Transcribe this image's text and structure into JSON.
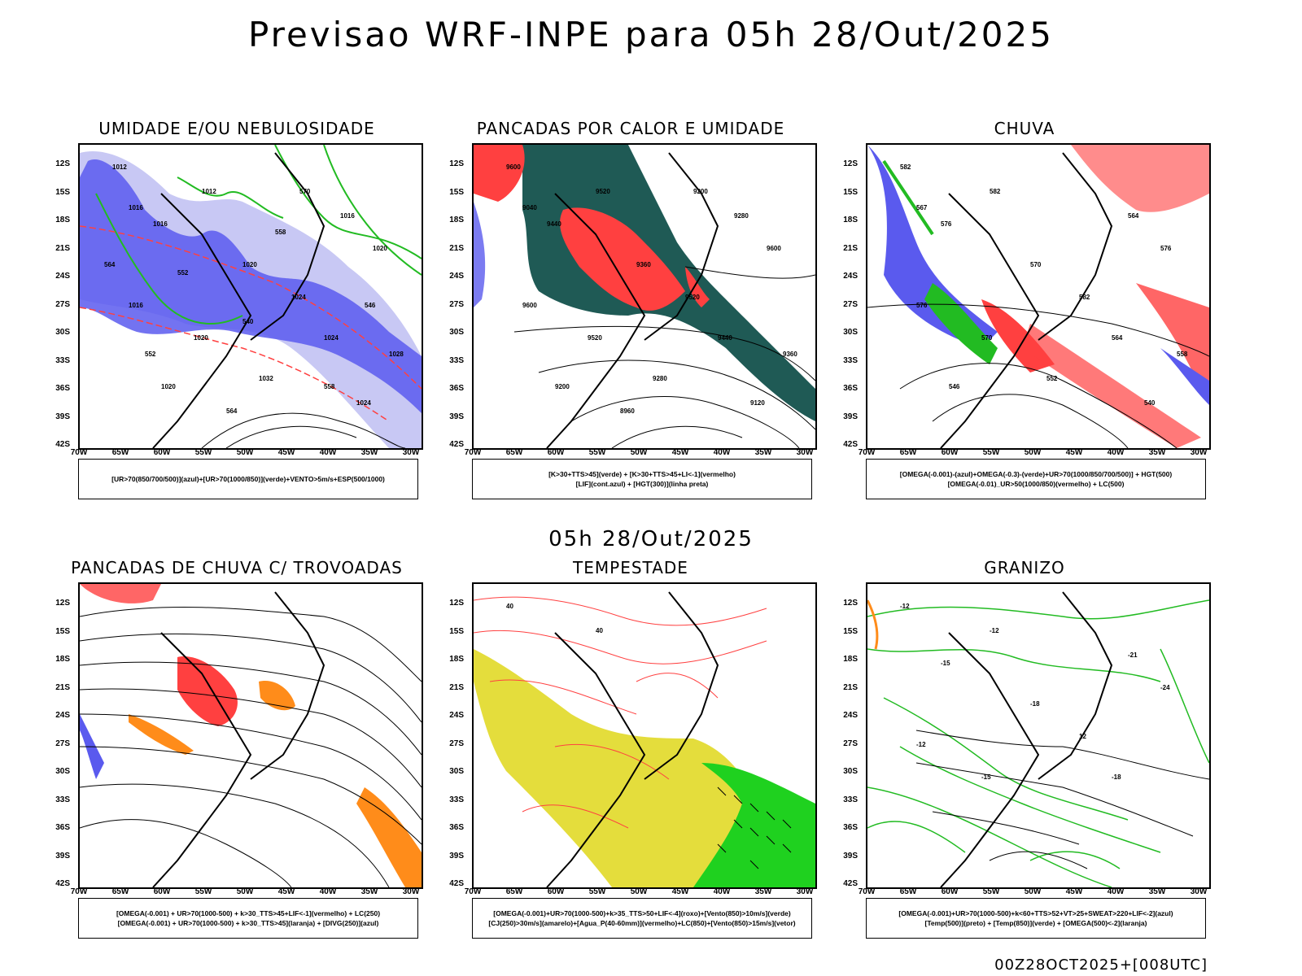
{
  "title": "Previsao WRF-INPE  para 05h 28/Out/2025",
  "mid_date": "05h 28/Out/2025",
  "footer": "00Z28OCT2025+[008UTC]",
  "lat_labels": [
    "12S",
    "15S",
    "18S",
    "21S",
    "24S",
    "27S",
    "30S",
    "33S",
    "36S",
    "39S",
    "42S"
  ],
  "lon_labels": [
    "70W",
    "65W",
    "60W",
    "55W",
    "50W",
    "45W",
    "40W",
    "35W",
    "30W"
  ],
  "panels": [
    {
      "title": "UMIDADE E/OU NEBULOSIDADE",
      "legend": [
        "[UR>70(850/700/500)](azul)+[UR>70(1000/850)](verde)+VENTO>5m/s+ESP(500/1000)"
      ],
      "contour_labels": [
        "1012",
        "1012",
        "1016",
        "1020",
        "1016",
        "1020",
        "1024",
        "1016",
        "1020",
        "1024",
        "1028",
        "1032",
        "1020",
        "1024",
        "1016",
        "564",
        "570",
        "564",
        "558",
        "552",
        "546",
        "540",
        "552",
        "558"
      ]
    },
    {
      "title": "PANCADAS POR CALOR E UMIDADE",
      "legend": [
        "[K>30+TTS>45](verde) + [K>30+TTS>45+LI<-1](vermelho)",
        "[LIF](cont.azul) + [HGT(300)](linha preta)"
      ],
      "contour_labels": [
        "9600",
        "9520",
        "9440",
        "9360",
        "9280",
        "9600",
        "9520",
        "9600",
        "9520",
        "9440",
        "9360",
        "9280",
        "9200",
        "9120",
        "9040",
        "8960",
        "9200"
      ]
    },
    {
      "title": "CHUVA",
      "legend": [
        "[OMEGA(-0.001)-(azul)+OMEGA(-0.3)-(verde)+UR>70(1000/850/700/500)] + HGT(500)",
        "[OMEGA(-0.01)_UR>50(1000/850)(vermelho) + LC(500)"
      ],
      "contour_labels": [
        "582",
        "582",
        "576",
        "570",
        "564",
        "576",
        "582",
        "576",
        "570",
        "564",
        "558",
        "552",
        "546",
        "540",
        "567"
      ]
    },
    {
      "title": "PANCADAS DE CHUVA C/ TROVOADAS",
      "legend": [
        "[OMEGA(-0.001) + UR>70(1000-500) + k>30_TTS>45+LIF<-1](vermelho) + LC(250)",
        "[OMEGA(-0.001) + UR>70(1000-500) + k>30_TTS>45](laranja) + [DIVG(250)](azul)"
      ],
      "contour_labels": []
    },
    {
      "title": "TEMPESTADE",
      "legend": [
        "[OMEGA(-0.001)+UR>70(1000-500)+k>35_TTS>50+LIF<-4](roxo)+[Vento(850)>10m/s](verde)",
        "[CJ(250)>30m/s](amarelo)+[Agua_P(40-60mm)](vermelho)+LC(850)+[Vento(850)>15m/s](vetor)"
      ],
      "contour_labels": [
        "40",
        "40"
      ]
    },
    {
      "title": "GRANIZO",
      "legend": [
        "[OMEGA(-0.001)+UR>70(1000-500)+k<60+TTS>52+VT>25+SWEAT>220+LIF<-2](azul)",
        "[Temp(500)](preto) + [Temp(850)](verde) + [OMEGA(500)<-2](laranja)"
      ],
      "contour_labels": [
        "-12",
        "-12",
        "-15",
        "-18",
        "-21",
        "-24",
        "12",
        "-12",
        "-15",
        "-18"
      ]
    }
  ],
  "colors": {
    "blue_humidity": "#5a5aee",
    "light_blue": "#c8c8f4",
    "green": "#22bb22",
    "red": "#ff4040",
    "dark_teal": "#1f5a55",
    "orange": "#ff8c1a",
    "yellow": "#e4dd3c",
    "bright_green": "#1fd11f"
  }
}
